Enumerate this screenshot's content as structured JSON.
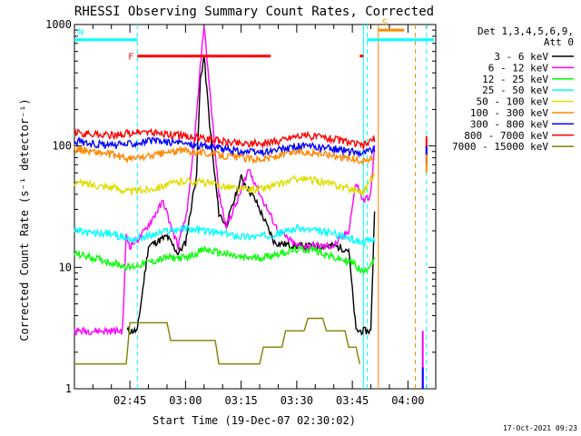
{
  "chart_data": {
    "type": "line",
    "title": "RHESSI Observing Summary Count Rates, Corrected",
    "xlabel": "Start Time (19-Dec-07 02:30:02)",
    "ylabel": "Corrected Count Rate (s⁻¹ detector⁻¹)",
    "y_scale": "log",
    "ylim": [
      1,
      1000
    ],
    "y_ticks": [
      {
        "value": 1,
        "label": "1"
      },
      {
        "value": 10,
        "label": "10"
      },
      {
        "value": 100,
        "label": "100"
      },
      {
        "value": 1000,
        "label": "1000"
      }
    ],
    "xlim": [
      "02:30:02",
      "04:07:30"
    ],
    "x_ticks": [
      {
        "value": "02:45",
        "label": "02:45"
      },
      {
        "value": "03:00",
        "label": "03:00"
      },
      {
        "value": "03:15",
        "label": "03:15"
      },
      {
        "value": "03:30",
        "label": "03:30"
      },
      {
        "value": "03:45",
        "label": "03:45"
      },
      {
        "value": "04:00",
        "label": "04:00"
      }
    ],
    "legend": {
      "placement": "outside-right",
      "header": [
        "Det 1,3,4,5,6,9,",
        "Att 0"
      ]
    },
    "series": [
      {
        "name": "3 - 6 keV",
        "color": "#000000",
        "x": [
          "02:30",
          "02:43",
          "02:44",
          "02:47",
          "02:50",
          "02:55",
          "02:58",
          "03:00",
          "03:03",
          "03:04",
          "03:05",
          "03:07",
          "03:09",
          "03:11",
          "03:15",
          "03:19",
          "03:24",
          "03:30",
          "03:35",
          "03:40",
          "03:44",
          "03:46",
          "03:48",
          "03:50",
          "03:51"
        ],
        "values": [
          null,
          null,
          3,
          3,
          15,
          18,
          13,
          16,
          60,
          350,
          550,
          100,
          28,
          22,
          55,
          35,
          16,
          15,
          15,
          15,
          14,
          3,
          3,
          3,
          30
        ]
      },
      {
        "name": "6 - 12 keV",
        "color": "#ff00ff",
        "x": [
          "02:30",
          "02:43",
          "02:44",
          "02:45",
          "02:48",
          "02:51",
          "02:54",
          "02:56",
          "02:58",
          "03:00",
          "03:01",
          "03:03",
          "03:04",
          "03:05",
          "03:07",
          "03:09",
          "03:11",
          "03:14",
          "03:17",
          "03:21",
          "03:25",
          "03:30",
          "03:35",
          "03:40",
          "03:44",
          "03:46",
          "03:48",
          "03:50",
          "03:51"
        ],
        "values": [
          3,
          3,
          18,
          15,
          18,
          25,
          35,
          22,
          15,
          25,
          40,
          180,
          450,
          1000,
          200,
          40,
          22,
          35,
          65,
          35,
          20,
          15,
          15,
          15,
          20,
          50,
          35,
          40,
          100
        ]
      },
      {
        "name": "12 - 25 keV",
        "color": "#00ff00",
        "x": [
          "02:30",
          "02:35",
          "02:40",
          "02:45",
          "02:50",
          "02:55",
          "03:00",
          "03:05",
          "03:10",
          "03:15",
          "03:20",
          "03:25",
          "03:30",
          "03:35",
          "03:40",
          "03:45",
          "03:48",
          "03:51"
        ],
        "values": [
          13,
          12,
          11,
          10,
          11,
          12,
          12,
          14,
          13,
          12,
          12,
          13,
          14,
          14,
          12,
          11,
          9,
          12
        ]
      },
      {
        "name": "25 - 50 keV",
        "color": "#00ffff",
        "x": [
          "02:30",
          "02:35",
          "02:40",
          "02:45",
          "02:50",
          "02:55",
          "03:00",
          "03:05",
          "03:10",
          "03:15",
          "03:20",
          "03:25",
          "03:30",
          "03:35",
          "03:40",
          "03:45",
          "03:48",
          "03:51"
        ],
        "values": [
          20,
          19,
          19,
          17,
          18,
          20,
          21,
          20,
          19,
          18,
          18,
          19,
          21,
          20,
          19,
          17,
          16,
          17
        ]
      },
      {
        "name": "50 - 100 keV",
        "color": "#dddd00",
        "x": [
          "02:30",
          "02:35",
          "02:40",
          "02:45",
          "02:50",
          "02:55",
          "03:00",
          "03:05",
          "03:10",
          "03:15",
          "03:20",
          "03:25",
          "03:30",
          "03:35",
          "03:40",
          "03:45",
          "03:48",
          "03:51"
        ],
        "values": [
          50,
          48,
          46,
          42,
          44,
          48,
          52,
          50,
          47,
          44,
          44,
          48,
          54,
          52,
          48,
          44,
          42,
          60
        ]
      },
      {
        "name": "100 - 300 keV",
        "color": "#ff8800",
        "x": [
          "02:30",
          "02:35",
          "02:40",
          "02:45",
          "02:50",
          "02:55",
          "03:00",
          "03:05",
          "03:10",
          "03:15",
          "03:20",
          "03:25",
          "03:30",
          "03:35",
          "03:40",
          "03:45",
          "03:48",
          "03:51"
        ],
        "values": [
          95,
          90,
          85,
          78,
          82,
          88,
          92,
          88,
          84,
          80,
          78,
          82,
          90,
          88,
          84,
          78,
          75,
          80
        ]
      },
      {
        "name": "300 - 800 keV",
        "color": "#0000ff",
        "x": [
          "02:30",
          "02:35",
          "02:40",
          "02:45",
          "02:50",
          "02:55",
          "03:00",
          "03:05",
          "03:10",
          "03:15",
          "03:20",
          "03:25",
          "03:30",
          "03:35",
          "03:40",
          "03:45",
          "03:48",
          "03:51"
        ],
        "values": [
          110,
          105,
          100,
          105,
          110,
          108,
          105,
          100,
          95,
          90,
          88,
          92,
          100,
          98,
          95,
          90,
          88,
          95
        ]
      },
      {
        "name": "800 - 7000 keV",
        "color": "#ff0000",
        "x": [
          "02:30",
          "02:35",
          "02:40",
          "02:45",
          "02:50",
          "02:55",
          "03:00",
          "03:05",
          "03:10",
          "03:15",
          "03:20",
          "03:25",
          "03:30",
          "03:35",
          "03:40",
          "03:45",
          "03:48",
          "03:51"
        ],
        "values": [
          128,
          125,
          122,
          128,
          130,
          125,
          120,
          115,
          110,
          105,
          105,
          110,
          122,
          120,
          115,
          105,
          100,
          115
        ]
      },
      {
        "name": "7000 - 15000 keV",
        "color": "#808000",
        "x": [
          "02:30",
          "02:44",
          "02:45",
          "02:55",
          "02:56",
          "03:08",
          "03:09",
          "03:20",
          "03:21",
          "03:26",
          "03:27",
          "03:32",
          "03:33",
          "03:37",
          "03:38",
          "03:43",
          "03:44",
          "03:46",
          "03:47"
        ],
        "values": [
          1.6,
          1.6,
          3.5,
          3.5,
          2.5,
          2.5,
          1.6,
          1.6,
          2.2,
          2.2,
          3,
          3,
          3.8,
          3.8,
          3,
          3,
          2.2,
          2.2,
          1.6
        ]
      }
    ],
    "flag_bars": [
      {
        "label": "N",
        "color": "#00ffff",
        "level": 750,
        "segments": [
          [
            "02:30",
            "02:47"
          ],
          [
            "03:49",
            "04:07"
          ]
        ]
      },
      {
        "label": "F",
        "color": "#ff0000",
        "level": 550,
        "segments": [
          [
            "02:47",
            "03:23"
          ],
          [
            "03:47",
            "03:48"
          ]
        ]
      },
      {
        "label": "S",
        "color": "#ff8800",
        "level": 900,
        "segments": [
          [
            "03:52",
            "03:59"
          ]
        ]
      }
    ],
    "vertical_markers": [
      {
        "time": "02:47",
        "color": "#00ffff",
        "style": "dashed"
      },
      {
        "time": "03:48",
        "color": "#00ffff",
        "style": "solid"
      },
      {
        "time": "03:49",
        "color": "#00ffff",
        "style": "dashed"
      },
      {
        "time": "03:52",
        "color": "#ff8800",
        "style": "solid"
      },
      {
        "time": "04:02",
        "color": "#ff8800",
        "style": "dashed"
      },
      {
        "time": "04:05",
        "color": "#00ffff",
        "style": "dashed"
      }
    ],
    "late_spikes": [
      {
        "time": "04:04",
        "color": "#ff00ff",
        "low": 1,
        "high": 3
      },
      {
        "time": "04:04",
        "color": "#0000ff",
        "low": 1,
        "high": 1.5
      },
      {
        "time": "04:05",
        "color": "#ff0000",
        "low": 80,
        "high": 120
      },
      {
        "time": "04:05",
        "color": "#0000ff",
        "low": 70,
        "high": 100
      },
      {
        "time": "04:05",
        "color": "#ff8800",
        "low": 60,
        "high": 85
      }
    ],
    "footer_date": "17-Oct-2021 09:23"
  }
}
